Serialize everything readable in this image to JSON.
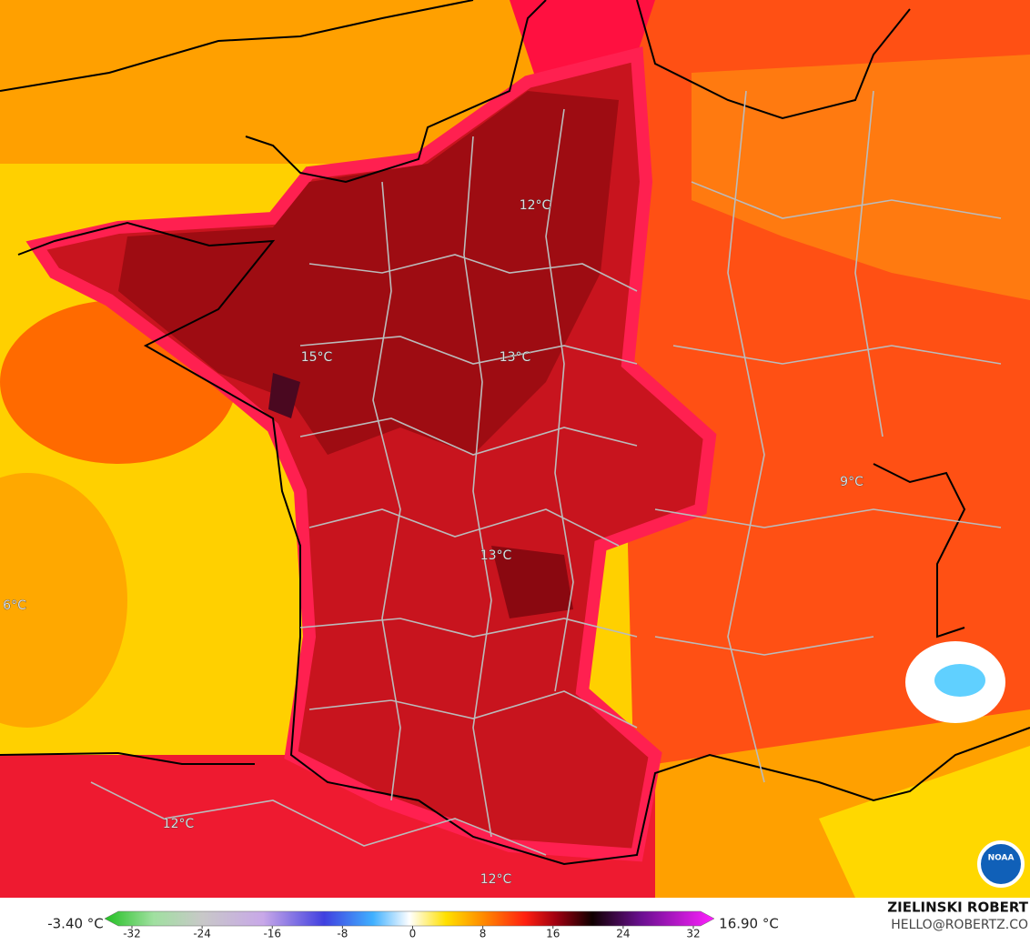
{
  "map": {
    "labels": [
      "12°C",
      "15°C",
      "13°C",
      "9°C",
      "13°C",
      "6°C",
      "12°C",
      "12°C"
    ],
    "logo": "NOAA"
  },
  "colorbar": {
    "min_label": "-3.40 °C",
    "max_label": "16.90 °C",
    "ticks": [
      -32,
      -24,
      -16,
      -8,
      0,
      8,
      16,
      24,
      32
    ]
  },
  "credit": {
    "name": "ZIELINSKI ROBERT",
    "email": "HELLO@ROBERTZ.CO"
  }
}
